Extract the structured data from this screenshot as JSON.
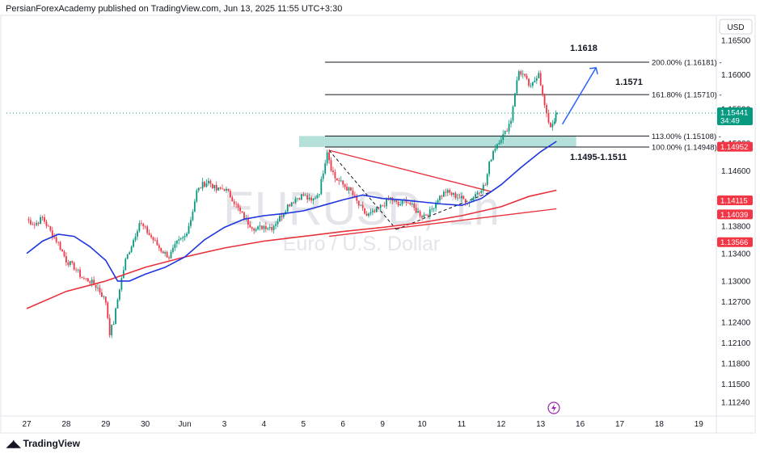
{
  "header": {
    "published_by": "PersianForexAcademy published on TradingView.com, Jun 13, 2025 11:55 UTC+3:30"
  },
  "watermark": {
    "symbol": "EURUSD, 1h",
    "description": "Euro / U.S. Dollar"
  },
  "footer": {
    "brand": "TradingView"
  },
  "colors": {
    "candle_up": "#089981",
    "candle_down": "#f23645",
    "ma_fast": "#1f36e0",
    "ma_slow": "#e8313b",
    "fib_line": "#131722",
    "zone_fill": "#a8dcd4",
    "forecast_arrow": "#2962ff"
  },
  "chart_data": {
    "type": "candlestick",
    "symbol": "EURUSD",
    "timeframe": "1h",
    "currency_label": "USD",
    "ylim": [
      1.1105,
      1.1685
    ],
    "y_ticks": [
      "1.16500",
      "1.16000",
      "1.15500",
      "1.15000",
      "1.14600",
      "1.14200",
      "1.13800",
      "1.13400",
      "1.13000",
      "1.12700",
      "1.12400",
      "1.12100",
      "1.11800",
      "1.11500",
      "1.11240"
    ],
    "y_tick_values": [
      1.165,
      1.16,
      1.155,
      1.15,
      1.146,
      1.142,
      1.138,
      1.134,
      1.13,
      1.127,
      1.124,
      1.121,
      1.118,
      1.115,
      1.1124
    ],
    "x_labels": [
      "27",
      "28",
      "29",
      "30",
      "Jun",
      "3",
      "4",
      "5",
      "6",
      "9",
      "10",
      "11",
      "12",
      "13",
      "16",
      "17",
      "18",
      "19"
    ],
    "x_label_days": [
      0,
      1,
      2,
      3,
      4,
      5,
      6,
      7,
      8,
      9,
      10,
      11,
      12,
      13,
      14,
      15,
      16,
      17
    ],
    "close_path": [
      [
        0.0,
        1.139
      ],
      [
        0.2,
        1.1382
      ],
      [
        0.4,
        1.1392
      ],
      [
        0.6,
        1.1372
      ],
      [
        0.8,
        1.1355
      ],
      [
        1.0,
        1.133
      ],
      [
        1.2,
        1.132
      ],
      [
        1.4,
        1.1305
      ],
      [
        1.6,
        1.13
      ],
      [
        1.8,
        1.129
      ],
      [
        2.0,
        1.127
      ],
      [
        2.1,
        1.1225
      ],
      [
        2.2,
        1.124
      ],
      [
        2.35,
        1.129
      ],
      [
        2.5,
        1.133
      ],
      [
        2.7,
        1.136
      ],
      [
        2.85,
        1.1385
      ],
      [
        3.0,
        1.1375
      ],
      [
        3.2,
        1.136
      ],
      [
        3.4,
        1.1345
      ],
      [
        3.6,
        1.1335
      ],
      [
        3.8,
        1.1355
      ],
      [
        4.0,
        1.1365
      ],
      [
        4.15,
        1.139
      ],
      [
        4.3,
        1.143
      ],
      [
        4.45,
        1.144
      ],
      [
        4.6,
        1.1445
      ],
      [
        4.8,
        1.1432
      ],
      [
        5.0,
        1.1435
      ],
      [
        5.2,
        1.142
      ],
      [
        5.4,
        1.14
      ],
      [
        5.6,
        1.1385
      ],
      [
        5.8,
        1.1375
      ],
      [
        6.0,
        1.138
      ],
      [
        6.2,
        1.1378
      ],
      [
        6.4,
        1.1392
      ],
      [
        6.6,
        1.141
      ],
      [
        6.8,
        1.142
      ],
      [
        7.0,
        1.1425
      ],
      [
        7.2,
        1.1415
      ],
      [
        7.4,
        1.143
      ],
      [
        7.5,
        1.146
      ],
      [
        7.6,
        1.149
      ],
      [
        7.7,
        1.1465
      ],
      [
        7.8,
        1.145
      ],
      [
        8.0,
        1.144
      ],
      [
        8.2,
        1.143
      ],
      [
        8.4,
        1.141
      ],
      [
        8.6,
        1.1395
      ],
      [
        8.8,
        1.14
      ],
      [
        9.0,
        1.141
      ],
      [
        9.2,
        1.142
      ],
      [
        9.4,
        1.141
      ],
      [
        9.6,
        1.1418
      ],
      [
        9.8,
        1.1405
      ],
      [
        10.0,
        1.1395
      ],
      [
        10.2,
        1.14
      ],
      [
        10.4,
        1.142
      ],
      [
        10.6,
        1.143
      ],
      [
        10.8,
        1.1425
      ],
      [
        11.0,
        1.142
      ],
      [
        11.2,
        1.1415
      ],
      [
        11.4,
        1.143
      ],
      [
        11.6,
        1.144
      ],
      [
        11.7,
        1.147
      ],
      [
        11.8,
        1.149
      ],
      [
        11.95,
        1.1505
      ],
      [
        12.1,
        1.1515
      ],
      [
        12.25,
        1.1535
      ],
      [
        12.35,
        1.1575
      ],
      [
        12.45,
        1.1605
      ],
      [
        12.55,
        1.16
      ],
      [
        12.65,
        1.159
      ],
      [
        12.75,
        1.158
      ],
      [
        12.85,
        1.1592
      ],
      [
        12.95,
        1.1605
      ],
      [
        13.05,
        1.157
      ],
      [
        13.15,
        1.154
      ],
      [
        13.25,
        1.1525
      ],
      [
        13.35,
        1.1535
      ],
      [
        13.42,
        1.1544
      ]
    ],
    "ma_fast_path": [
      [
        0.0,
        1.134
      ],
      [
        0.4,
        1.1358
      ],
      [
        0.8,
        1.1368
      ],
      [
        1.2,
        1.1365
      ],
      [
        1.6,
        1.135
      ],
      [
        2.0,
        1.133
      ],
      [
        2.3,
        1.13
      ],
      [
        2.6,
        1.13
      ],
      [
        3.0,
        1.131
      ],
      [
        3.5,
        1.132
      ],
      [
        4.0,
        1.1335
      ],
      [
        4.5,
        1.136
      ],
      [
        5.0,
        1.1378
      ],
      [
        5.5,
        1.139
      ],
      [
        6.0,
        1.1395
      ],
      [
        6.5,
        1.1398
      ],
      [
        7.0,
        1.1402
      ],
      [
        7.5,
        1.141
      ],
      [
        8.0,
        1.1418
      ],
      [
        8.5,
        1.1425
      ],
      [
        9.0,
        1.142
      ],
      [
        9.5,
        1.1418
      ],
      [
        10.0,
        1.1415
      ],
      [
        10.5,
        1.1412
      ],
      [
        11.0,
        1.141
      ],
      [
        11.5,
        1.142
      ],
      [
        12.0,
        1.144
      ],
      [
        12.5,
        1.1465
      ],
      [
        13.0,
        1.1488
      ],
      [
        13.4,
        1.1503
      ]
    ],
    "ma_slow_path": [
      [
        0.0,
        1.126
      ],
      [
        1.0,
        1.1285
      ],
      [
        2.0,
        1.13
      ],
      [
        3.0,
        1.132
      ],
      [
        4.0,
        1.1335
      ],
      [
        5.0,
        1.1348
      ],
      [
        6.0,
        1.1358
      ],
      [
        7.0,
        1.1365
      ],
      [
        8.0,
        1.1372
      ],
      [
        9.0,
        1.1378
      ],
      [
        10.0,
        1.1385
      ],
      [
        11.0,
        1.1395
      ],
      [
        12.0,
        1.1408
      ],
      [
        12.7,
        1.1423
      ],
      [
        13.4,
        1.1432
      ]
    ],
    "trendlines": [
      {
        "name": "descending resistance",
        "from": [
          7.65,
          1.149
        ],
        "to": [
          11.75,
          1.143
        ],
        "color": "#e8313b"
      },
      {
        "name": "ascending support",
        "from": [
          7.65,
          1.1365
        ],
        "to": [
          13.4,
          1.1405
        ],
        "color": "#e8313b"
      },
      {
        "name": "dashed swing leg",
        "from": [
          7.65,
          1.149
        ],
        "to": [
          9.35,
          1.1375
        ],
        "dashed": true
      },
      {
        "name": "dashed swing leg 2",
        "from": [
          9.35,
          1.1375
        ],
        "to": [
          11.75,
          1.143
        ],
        "dashed": true
      }
    ],
    "fib_levels": [
      {
        "label": "200.00% (1.16181)",
        "price": 1.16181
      },
      {
        "label": "161.80% (1.15710)",
        "price": 1.1571
      },
      {
        "label": "113.00% (1.15108)",
        "price": 1.15108
      },
      {
        "label": "100.00% (1.14948)",
        "price": 1.14948
      }
    ],
    "fib_x_range": [
      7.65,
      13.9
    ],
    "zone": {
      "label": "1.1495-1.1511",
      "low": 1.14948,
      "high": 1.15108,
      "x_from": 7.65,
      "x_to": 13.9
    },
    "targets": [
      {
        "label": "1.1618",
        "price": 1.16181
      },
      {
        "label": "1.1571",
        "price": 1.1571
      }
    ],
    "forecast_arrow": {
      "from": [
        13.55,
        1.1528
      ],
      "to": [
        14.4,
        1.161
      ]
    },
    "price_labels": [
      {
        "text": "1.15441",
        "subtext": "34:49",
        "value": 1.15441,
        "color": "#089981"
      },
      {
        "text": "1.14952",
        "value": 1.14952,
        "color": "#f23645"
      },
      {
        "text": "1.14115",
        "value": 1.14115,
        "color": "#f23645"
      },
      {
        "text": "1.14039",
        "value": 1.14039,
        "color": "#f23645"
      },
      {
        "text": "1.13566",
        "value": 1.13566,
        "color": "#f23645"
      }
    ],
    "current_price": 1.15441
  }
}
